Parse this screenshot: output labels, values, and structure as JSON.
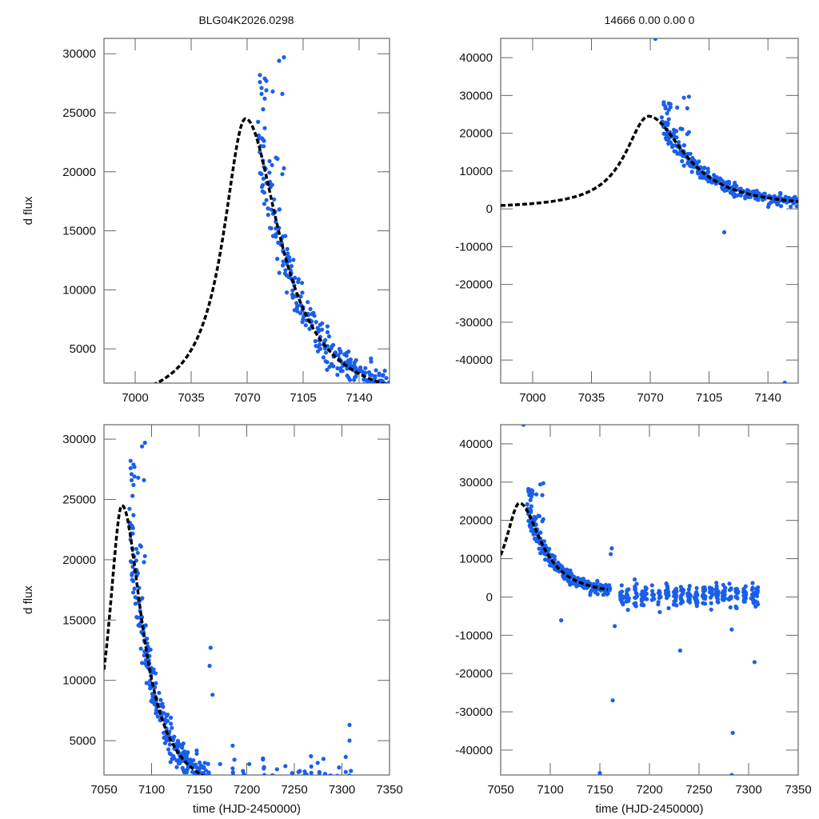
{
  "figure": {
    "title_left": "BLG04K2026.0298",
    "title_right": "14666  0.00  0.00  0",
    "point_color": "#1a5fea",
    "model_color": "#000000",
    "frame_color": "#666666"
  },
  "chart_data": [
    {
      "id": "top-left",
      "type": "scatter",
      "title": "BLG04K2026.0298",
      "xlabel": "",
      "ylabel": "d flux",
      "xlim": [
        6980.5,
        7159
      ],
      "ylim": [
        2100,
        31300
      ],
      "xticks": [
        7000,
        7035,
        7070,
        7105,
        7140
      ],
      "yticks": [
        5000,
        10000,
        15000,
        20000,
        25000,
        30000
      ],
      "grid": false,
      "model": {
        "t0": 7069,
        "peak": 24500,
        "tE_rise": 17,
        "tE_fall": 26,
        "base": 0,
        "style": "dashed"
      },
      "points_summary": "dense blue photometric points from ~7077 to 7159, falling from ~28000 to ~3000 along the model, scattered outliers up to ~29800"
    },
    {
      "id": "top-right",
      "type": "scatter",
      "title": "14666  0.00  0.00  0",
      "xlabel": "",
      "ylabel": "",
      "xlim": [
        6981,
        7158
      ],
      "ylim": [
        -46100,
        45100
      ],
      "xticks": [
        7000,
        7035,
        7070,
        7105,
        7140
      ],
      "yticks": [
        -40000,
        -30000,
        -20000,
        -10000,
        0,
        10000,
        20000,
        30000,
        40000
      ],
      "grid": false,
      "model": {
        "t0": 7069,
        "peak": 24500,
        "tE_rise": 17,
        "tE_fall": 26,
        "base": 0,
        "style": "dashed"
      },
      "outliers": [
        [
          7073,
          45000
        ],
        [
          7114,
          -6200
        ],
        [
          7150,
          -46000
        ]
      ]
    },
    {
      "id": "bottom-left",
      "type": "scatter",
      "title": "",
      "xlabel": "time (HJD-2450000)",
      "ylabel": "d flux",
      "xlim": [
        7050,
        7350
      ],
      "ylim": [
        2150,
        31200
      ],
      "xticks": [
        7050,
        7100,
        7150,
        7200,
        7250,
        7300,
        7350
      ],
      "yticks": [
        5000,
        10000,
        15000,
        20000,
        25000,
        30000
      ],
      "grid": false,
      "model": {
        "t0": 7069,
        "peak": 24500,
        "tE_rise": 17,
        "tE_fall": 26,
        "base": 0,
        "range": [
          7050,
          7158
        ],
        "style": "dashed"
      },
      "outliers": [
        [
          7162,
          12700
        ],
        [
          7161,
          11200
        ],
        [
          7164,
          8800
        ],
        [
          7308,
          6300
        ],
        [
          7308,
          5000
        ]
      ]
    },
    {
      "id": "bottom-right",
      "type": "scatter",
      "title": "",
      "xlabel": "time (HJD-2450000)",
      "ylabel": "",
      "xlim": [
        7050,
        7350
      ],
      "ylim": [
        -46500,
        45000
      ],
      "xticks": [
        7050,
        7100,
        7150,
        7200,
        7250,
        7300,
        7350
      ],
      "yticks": [
        -40000,
        -30000,
        -20000,
        -10000,
        0,
        10000,
        20000,
        30000,
        40000
      ],
      "grid": false,
      "model": {
        "t0": 7069,
        "peak": 24500,
        "tE_rise": 17,
        "tE_fall": 26,
        "base": 0,
        "range": [
          7050,
          7158
        ],
        "style": "dashed"
      },
      "outliers": [
        [
          7073,
          45000
        ],
        [
          7111,
          -6100
        ],
        [
          7163,
          -27000
        ],
        [
          7150,
          -46000
        ],
        [
          7231,
          -14000
        ],
        [
          7284,
          -35500
        ],
        [
          7283,
          -46500
        ],
        [
          7306,
          -17000
        ],
        [
          7162,
          12700
        ],
        [
          7161,
          11200
        ],
        [
          7165,
          -7600
        ],
        [
          7283,
          -8500
        ]
      ]
    }
  ]
}
